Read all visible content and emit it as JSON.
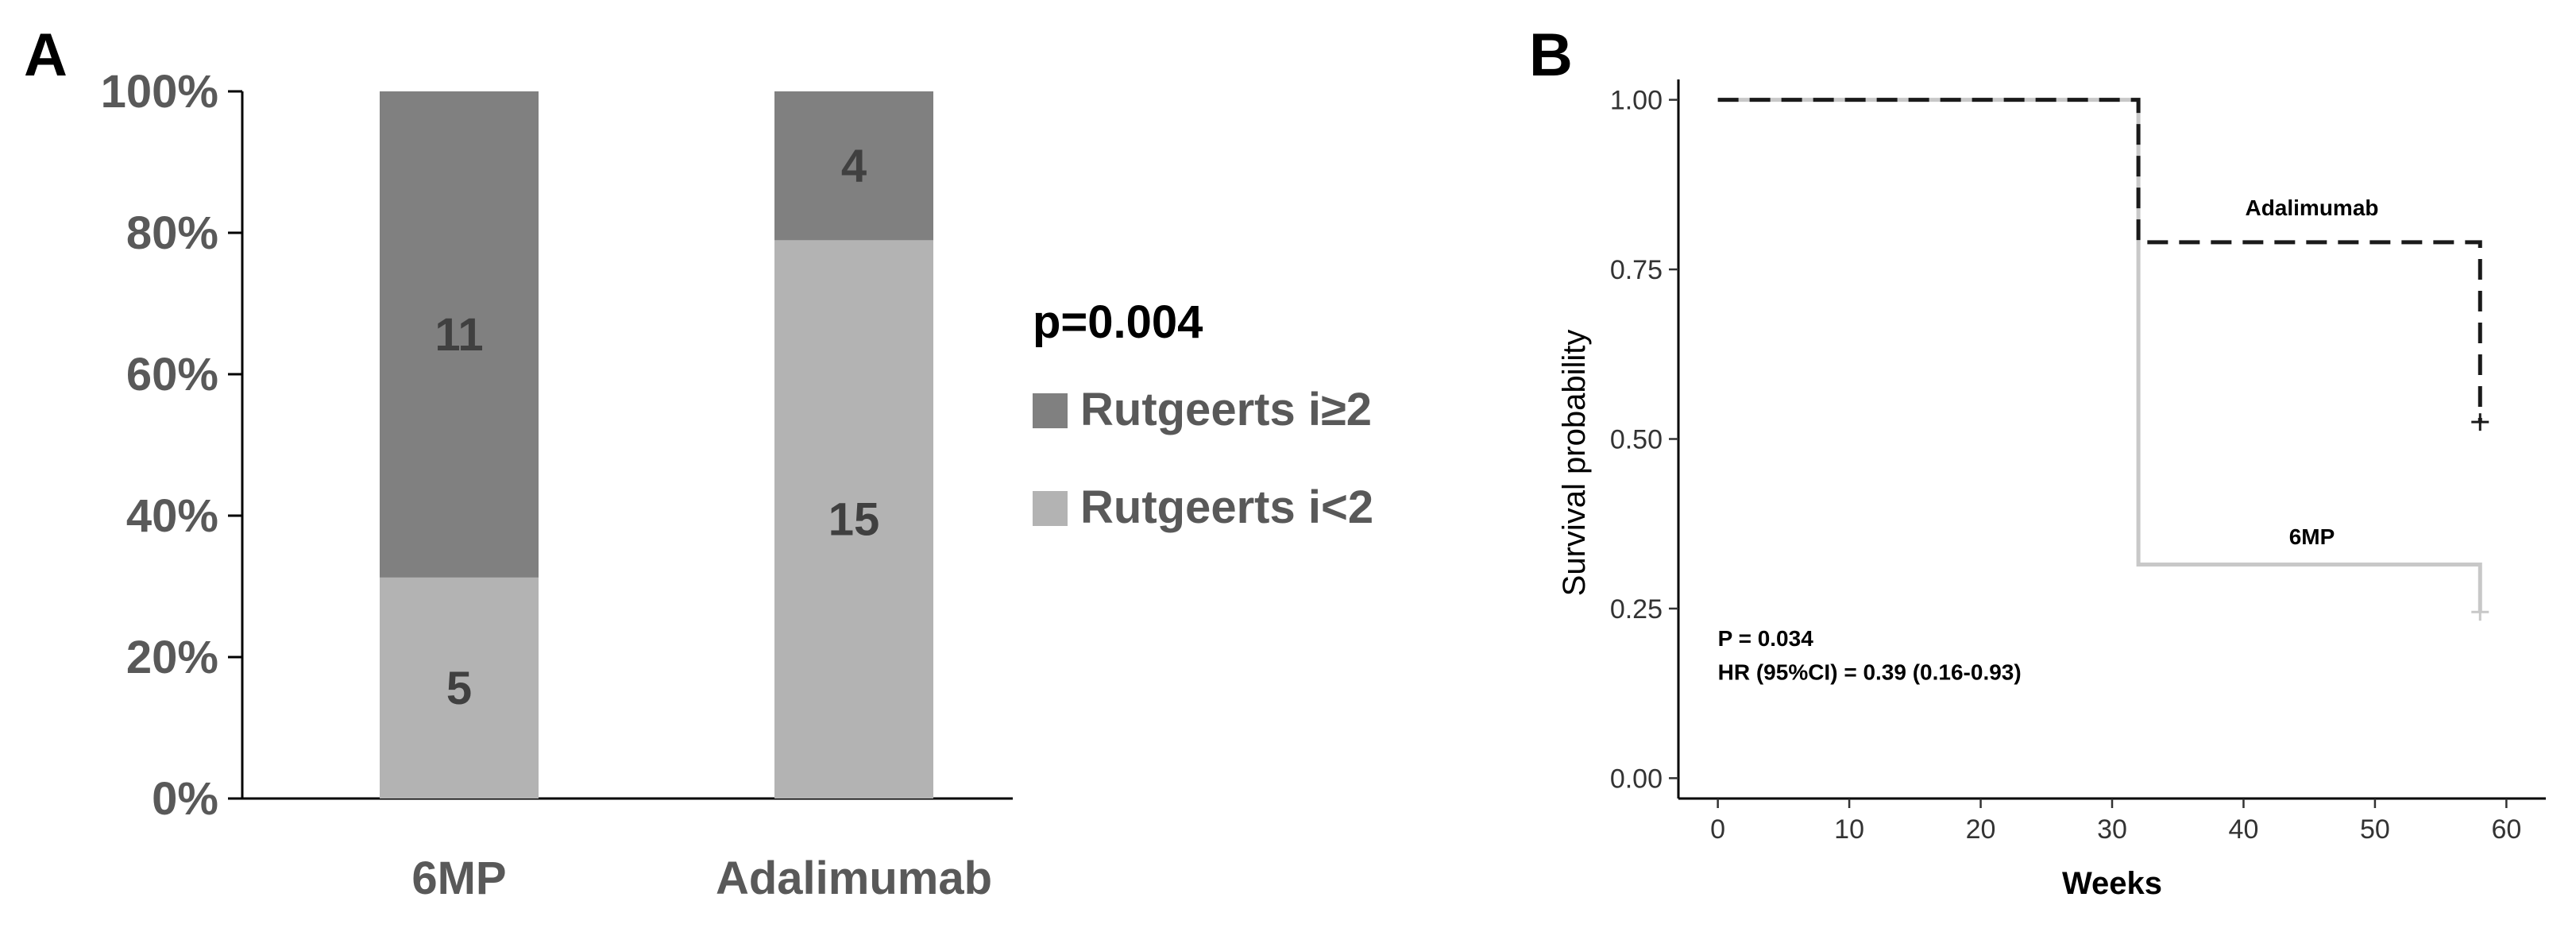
{
  "chart_data": [
    {
      "panel": "A",
      "type": "bar",
      "stacked": true,
      "percent": true,
      "categories": [
        "6MP",
        "Adalimumab"
      ],
      "series": [
        {
          "name": "Rutgeerts i<2",
          "values": [
            5,
            15
          ],
          "color": "#b3b3b3"
        },
        {
          "name": "Rutgeerts i≥2",
          "values": [
            11,
            4
          ],
          "color": "#808080"
        }
      ],
      "yticks": [
        "0%",
        "20%",
        "40%",
        "60%",
        "80%",
        "100%"
      ],
      "ylim": [
        0,
        100
      ],
      "annotation": "p=0.004",
      "legend": [
        "Rutgeerts i≥2",
        "Rutgeerts i<2"
      ],
      "legend_position": "right"
    },
    {
      "panel": "B",
      "type": "line",
      "subtype": "kaplan-meier step",
      "xlabel": "Weeks",
      "ylabel": "Survival probability",
      "xlim": [
        -3,
        63
      ],
      "ylim": [
        -0.03,
        1.03
      ],
      "xticks": [
        0,
        10,
        20,
        30,
        40,
        50,
        60
      ],
      "yticks": [
        "0.00",
        "0.25",
        "0.50",
        "0.75",
        "1.00"
      ],
      "series": [
        {
          "name": "Adalimumab",
          "style": "dashed",
          "color": "#1a1a1a",
          "x": [
            0,
            32,
            32,
            58,
            58
          ],
          "y": [
            1.0,
            1.0,
            0.79,
            0.79,
            0.525
          ],
          "censor": [
            58,
            0.525
          ]
        },
        {
          "name": "6MP",
          "style": "solid",
          "color": "#c8c8c8",
          "x": [
            0,
            32,
            32,
            58,
            58
          ],
          "y": [
            1.0,
            1.0,
            0.315,
            0.315,
            0.245
          ],
          "censor": [
            58,
            0.245
          ]
        }
      ],
      "curve_labels": [
        "Adalimumab",
        "6MP"
      ],
      "annotations": [
        "P = 0.034",
        "HR (95%CI) = 0.39 (0.16-0.93)"
      ]
    }
  ]
}
